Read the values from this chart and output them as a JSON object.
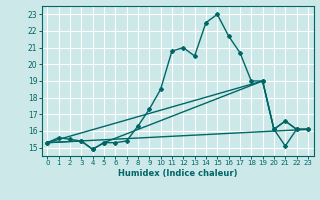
{
  "xlabel": "Humidex (Indice chaleur)",
  "ylabel": "",
  "bg_color": "#cce8e8",
  "grid_color": "#ffffff",
  "line_color": "#006666",
  "xlim": [
    -0.5,
    23.5
  ],
  "ylim": [
    14.5,
    23.5
  ],
  "xticks": [
    0,
    1,
    2,
    3,
    4,
    5,
    6,
    7,
    8,
    9,
    10,
    11,
    12,
    13,
    14,
    15,
    16,
    17,
    18,
    19,
    20,
    21,
    22,
    23
  ],
  "yticks": [
    15,
    16,
    17,
    18,
    19,
    20,
    21,
    22,
    23
  ],
  "series": [
    {
      "x": [
        0,
        1,
        2,
        3,
        4,
        5,
        6,
        7,
        8,
        9,
        10,
        11,
        12,
        13,
        14,
        15,
        16,
        17,
        18,
        19,
        20,
        21,
        22,
        23
      ],
      "y": [
        15.3,
        15.6,
        15.5,
        15.4,
        14.9,
        15.3,
        15.3,
        15.4,
        16.3,
        17.3,
        18.5,
        20.8,
        21.0,
        20.5,
        22.5,
        23.0,
        21.7,
        20.7,
        19.0,
        19.0,
        16.1,
        16.6,
        16.1,
        16.1
      ],
      "marker": "D",
      "markersize": 2.0,
      "linewidth": 1.0
    },
    {
      "x": [
        0,
        19,
        20,
        21,
        22,
        23
      ],
      "y": [
        15.3,
        19.0,
        16.1,
        16.6,
        16.1,
        16.1
      ],
      "marker": null,
      "markersize": 0,
      "linewidth": 1.0
    },
    {
      "x": [
        0,
        23
      ],
      "y": [
        15.3,
        16.1
      ],
      "marker": null,
      "markersize": 0,
      "linewidth": 1.0
    },
    {
      "x": [
        0,
        3,
        4,
        5,
        19,
        20,
        21,
        22,
        23
      ],
      "y": [
        15.3,
        15.4,
        14.9,
        15.3,
        19.0,
        16.1,
        15.1,
        16.1,
        16.1
      ],
      "marker": "D",
      "markersize": 2.0,
      "linewidth": 1.0
    }
  ]
}
